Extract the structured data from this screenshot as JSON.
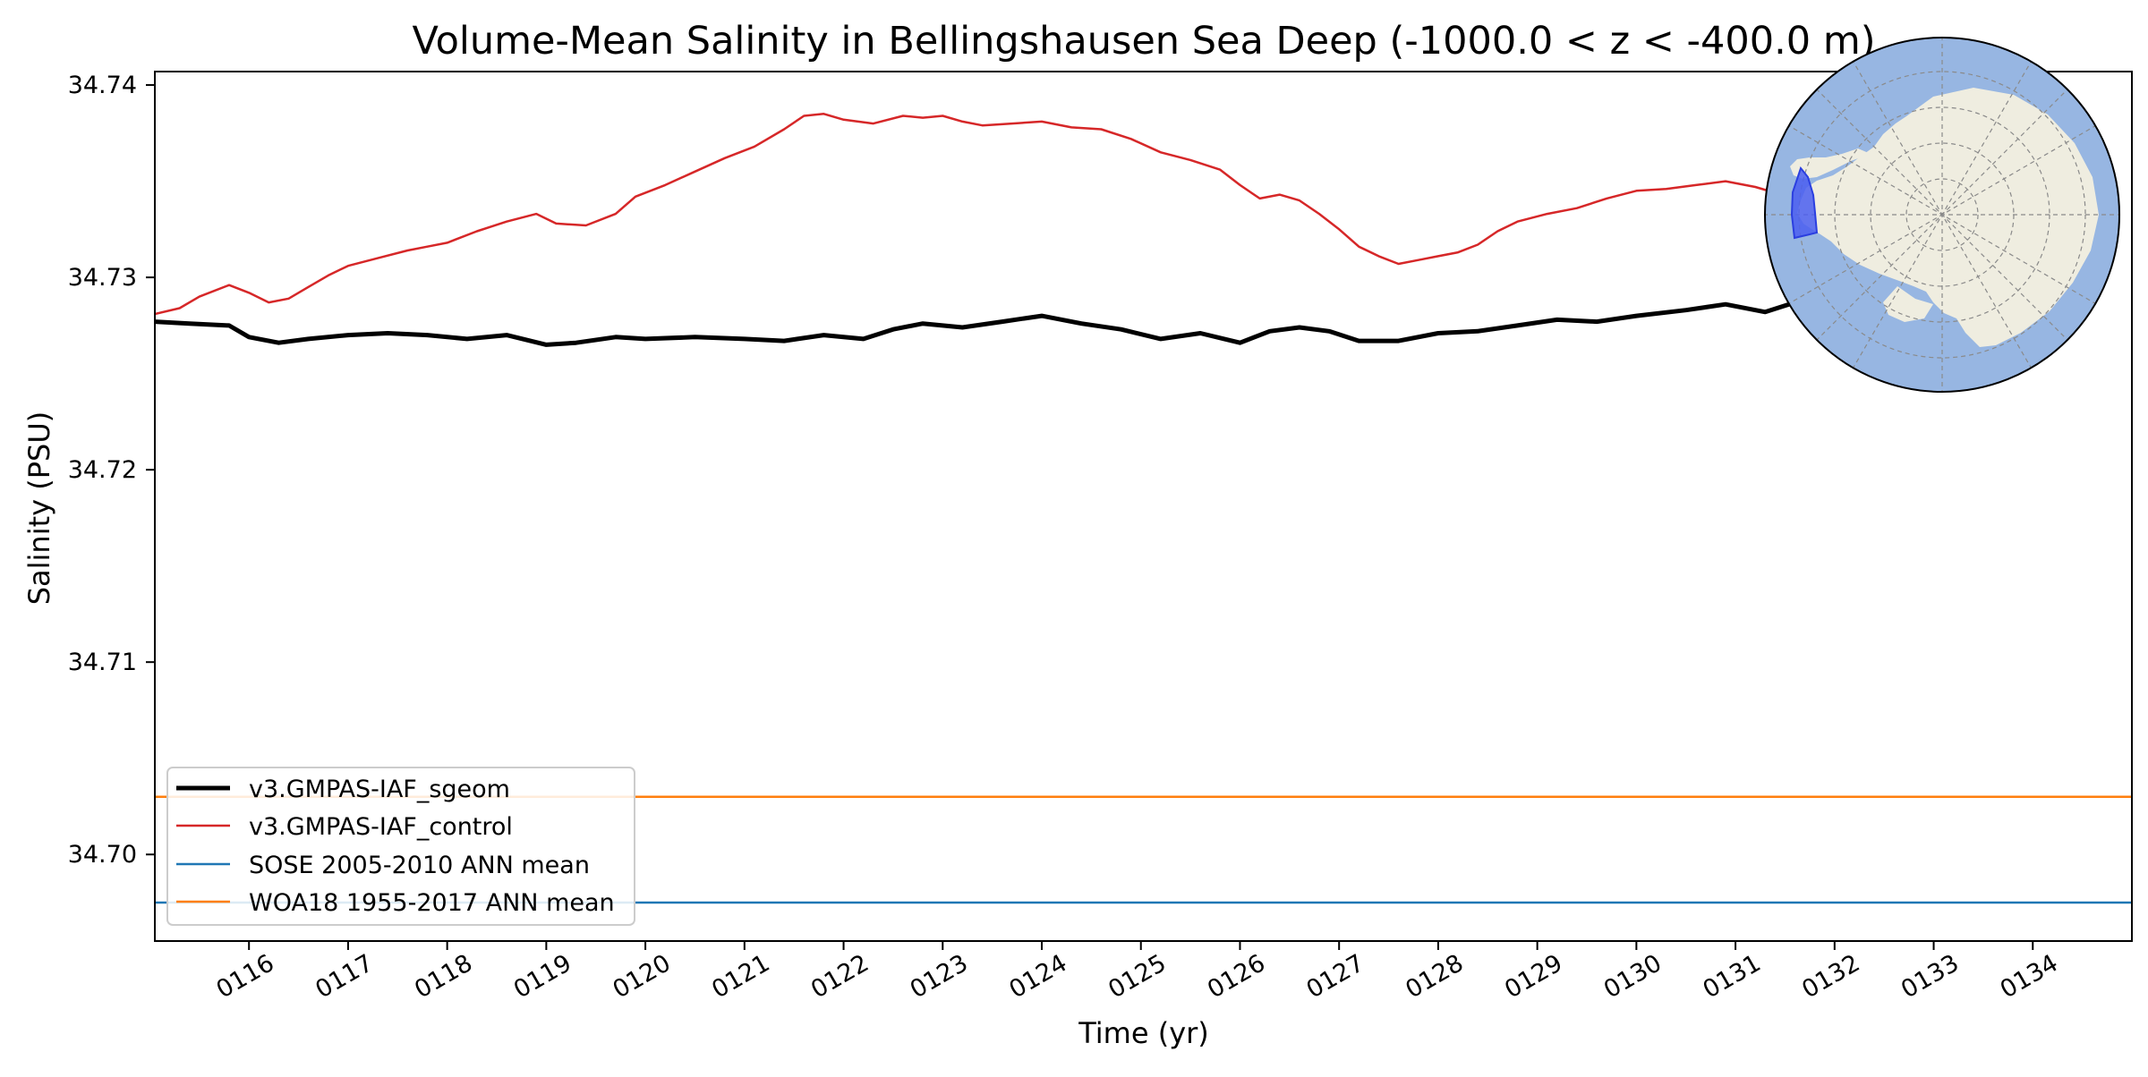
{
  "chart_data": {
    "type": "line",
    "title": "Volume-Mean Salinity in Bellingshausen Sea Deep (-1000.0 < z < -400.0 m)",
    "xlabel": "Time (yr)",
    "ylabel": "Salinity (PSU)",
    "xlim": [
      115.05,
      135.0
    ],
    "ylim": [
      34.6955,
      34.7407
    ],
    "xticks": [
      116,
      117,
      118,
      119,
      120,
      121,
      122,
      123,
      124,
      125,
      126,
      127,
      128,
      129,
      130,
      131,
      132,
      133,
      134
    ],
    "xtick_labels": [
      "0116",
      "0117",
      "0118",
      "0119",
      "0120",
      "0121",
      "0122",
      "0123",
      "0124",
      "0125",
      "0126",
      "0127",
      "0128",
      "0129",
      "0130",
      "0131",
      "0132",
      "0133",
      "0134"
    ],
    "yticks": [
      34.7,
      34.71,
      34.72,
      34.73,
      34.74
    ],
    "ytick_labels": [
      "34.70",
      "34.71",
      "34.72",
      "34.73",
      "34.74"
    ],
    "grid": false,
    "legend_position": "lower-left",
    "series": [
      {
        "name": "v3.GMPAS-IAF_sgeom",
        "color": "#000000",
        "x": [
          115.05,
          115.4,
          115.8,
          116.0,
          116.3,
          116.6,
          117.0,
          117.4,
          117.8,
          118.2,
          118.6,
          119.0,
          119.3,
          119.7,
          120.0,
          120.5,
          121.0,
          121.4,
          121.8,
          122.2,
          122.5,
          122.8,
          123.2,
          123.6,
          124.0,
          124.4,
          124.8,
          125.2,
          125.6,
          126.0,
          126.3,
          126.6,
          126.9,
          127.2,
          127.6,
          128.0,
          128.4,
          128.8,
          129.2,
          129.6,
          130.0,
          130.5,
          130.9,
          131.3,
          131.6
        ],
        "y": [
          34.7277,
          34.7276,
          34.7275,
          34.7269,
          34.7266,
          34.7268,
          34.727,
          34.7271,
          34.727,
          34.7268,
          34.727,
          34.7265,
          34.7266,
          34.7269,
          34.7268,
          34.7269,
          34.7268,
          34.7267,
          34.727,
          34.7268,
          34.7273,
          34.7276,
          34.7274,
          34.7277,
          34.728,
          34.7276,
          34.7273,
          34.7268,
          34.7271,
          34.7266,
          34.7272,
          34.7274,
          34.7272,
          34.7267,
          34.7267,
          34.7271,
          34.7272,
          34.7275,
          34.7278,
          34.7277,
          34.728,
          34.7283,
          34.7286,
          34.7282,
          34.7287
        ]
      },
      {
        "name": "v3.GMPAS-IAF_control",
        "color": "#d62728",
        "x": [
          115.05,
          115.3,
          115.5,
          115.8,
          116.0,
          116.2,
          116.4,
          116.6,
          116.8,
          117.0,
          117.3,
          117.6,
          117.8,
          118.0,
          118.3,
          118.6,
          118.9,
          119.1,
          119.4,
          119.7,
          119.9,
          120.2,
          120.5,
          120.8,
          121.1,
          121.4,
          121.6,
          121.8,
          122.0,
          122.3,
          122.6,
          122.8,
          123.0,
          123.2,
          123.4,
          123.7,
          124.0,
          124.3,
          124.6,
          124.9,
          125.2,
          125.5,
          125.8,
          126.0,
          126.2,
          126.4,
          126.6,
          126.8,
          127.0,
          127.2,
          127.4,
          127.6,
          127.8,
          128.0,
          128.2,
          128.4,
          128.6,
          128.8,
          129.1,
          129.4,
          129.7,
          130.0,
          130.3,
          130.6,
          130.9,
          131.2,
          131.4
        ],
        "y": [
          34.7281,
          34.7284,
          34.729,
          34.7296,
          34.7292,
          34.7287,
          34.7289,
          34.7295,
          34.7301,
          34.7306,
          34.731,
          34.7314,
          34.7316,
          34.7318,
          34.7324,
          34.7329,
          34.7333,
          34.7328,
          34.7327,
          34.7333,
          34.7342,
          34.7348,
          34.7355,
          34.7362,
          34.7368,
          34.7377,
          34.7384,
          34.7385,
          34.7382,
          34.738,
          34.7384,
          34.7383,
          34.7384,
          34.7381,
          34.7379,
          34.738,
          34.7381,
          34.7378,
          34.7377,
          34.7372,
          34.7365,
          34.7361,
          34.7356,
          34.7348,
          34.7341,
          34.7343,
          34.734,
          34.7333,
          34.7325,
          34.7316,
          34.7311,
          34.7307,
          34.7309,
          34.7311,
          34.7313,
          34.7317,
          34.7324,
          34.7329,
          34.7333,
          34.7336,
          34.7341,
          34.7345,
          34.7346,
          34.7348,
          34.735,
          34.7347,
          34.7344
        ]
      },
      {
        "name": "SOSE 2005-2010 ANN mean",
        "color": "#1f77b4",
        "x": [
          115.05,
          135.0
        ],
        "y": [
          34.6975,
          34.6975
        ]
      },
      {
        "name": "WOA18 1955-2017 ANN mean",
        "color": "#ff7f0e",
        "x": [
          115.05,
          135.0
        ],
        "y": [
          34.703,
          34.703
        ]
      }
    ],
    "inset_map": {
      "land_color": "#efede0",
      "ocean_color": "#97b6e2",
      "region_color": "#4a5ef0"
    }
  }
}
